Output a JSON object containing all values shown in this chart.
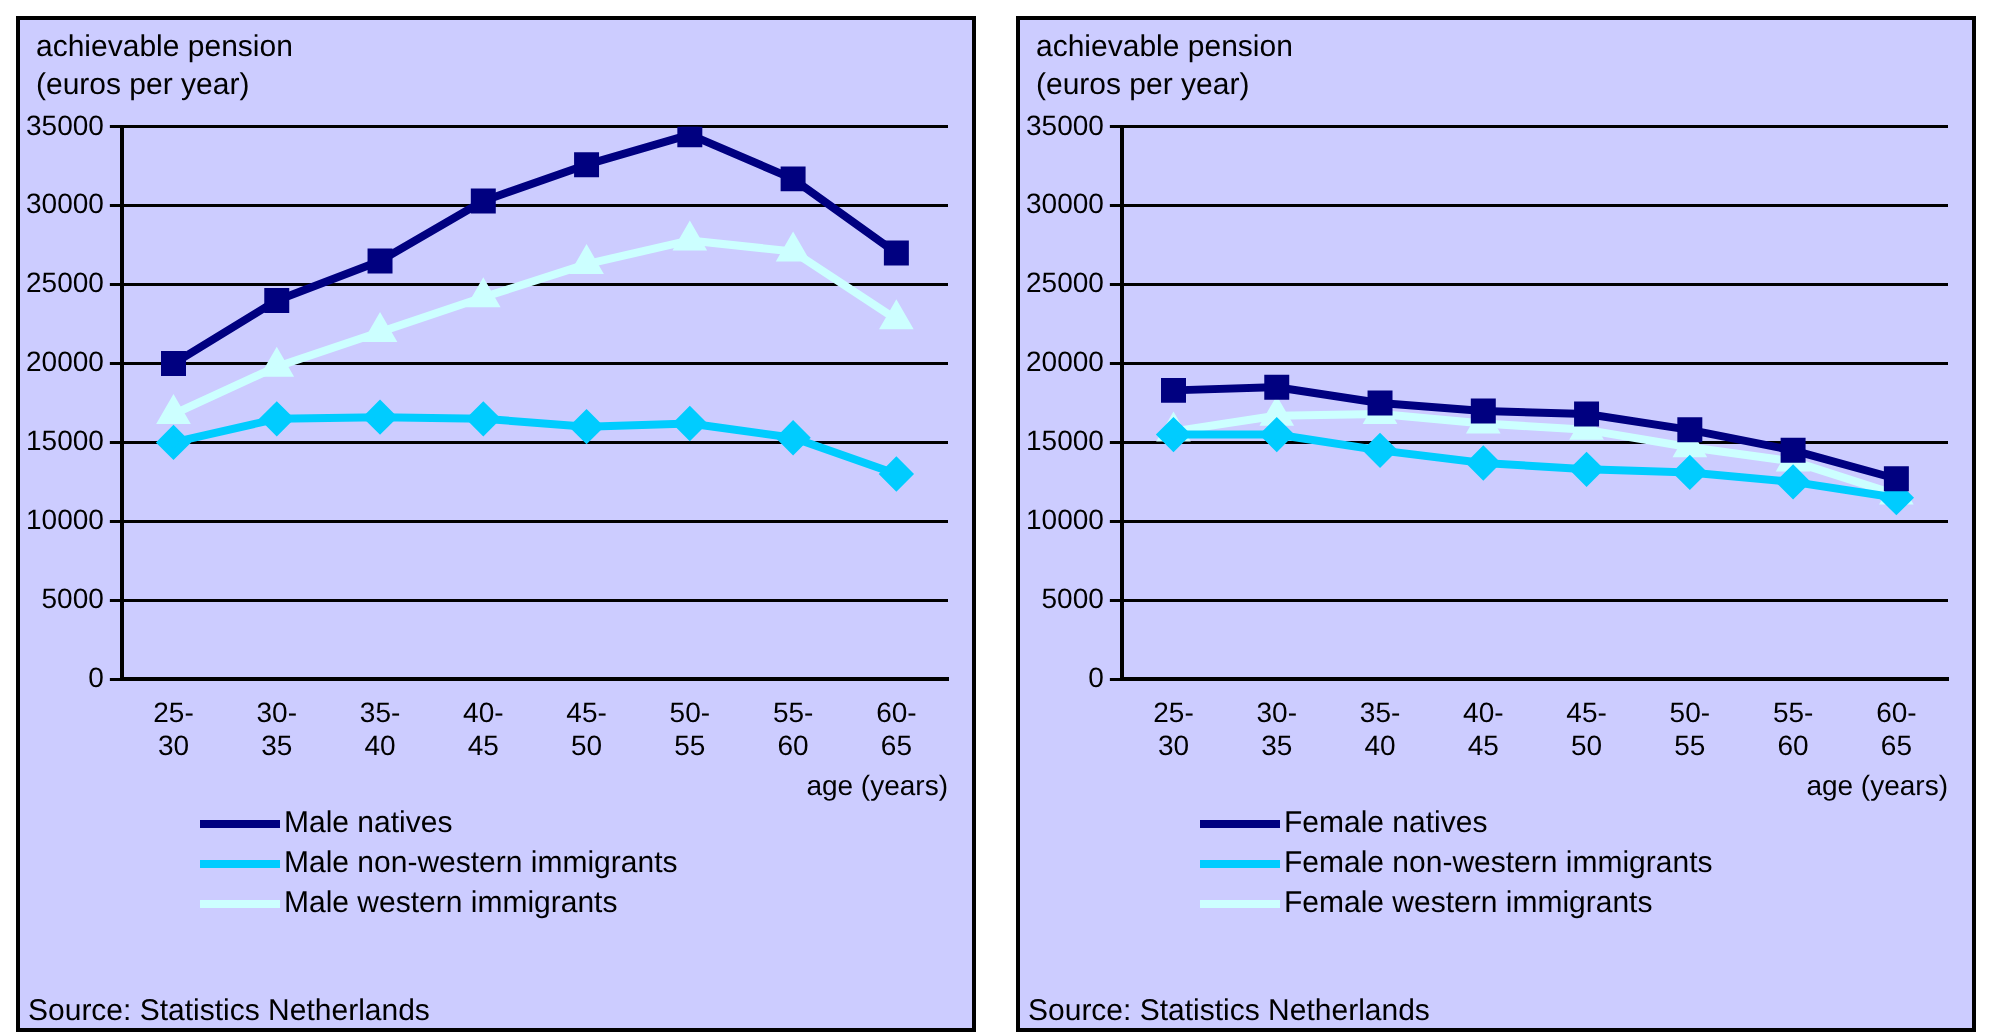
{
  "chart_data": [
    {
      "type": "line",
      "ylabel": "achievable pension\n(euros per year)",
      "xlabel": "age (years)",
      "categories": [
        "25-30",
        "30-35",
        "35-40",
        "40-45",
        "45-50",
        "50-55",
        "55-60",
        "60-65"
      ],
      "series": [
        {
          "name": "Male natives",
          "color": "#000080",
          "marker": "square",
          "values": [
            20000,
            24000,
            26500,
            30300,
            32600,
            34500,
            31700,
            27000
          ]
        },
        {
          "name": "Male non-western immigrants",
          "color": "#00ccff",
          "marker": "diamond",
          "values": [
            15000,
            16500,
            16600,
            16500,
            16000,
            16200,
            15300,
            13000
          ]
        },
        {
          "name": "Male western immigrants",
          "color": "#ccffff",
          "marker": "triangle",
          "values": [
            16800,
            19800,
            22000,
            24200,
            26300,
            27800,
            27100,
            22800
          ]
        }
      ],
      "ylim": [
        0,
        35000
      ],
      "yticks": [
        0,
        5000,
        10000,
        15000,
        20000,
        25000,
        30000,
        35000
      ],
      "grid": "y",
      "legend": "bottom left",
      "line_style": "solid",
      "annotations": [
        "Source: Statistics Netherlands"
      ]
    },
    {
      "type": "line",
      "ylabel": "achievable pension\n(euros per year)",
      "xlabel": "age (years)",
      "categories": [
        "25-30",
        "30-35",
        "35-40",
        "40-45",
        "45-50",
        "50-55",
        "55-60",
        "60-65"
      ],
      "series": [
        {
          "name": "Female natives",
          "color": "#000080",
          "marker": "square",
          "values": [
            18300,
            18500,
            17500,
            17000,
            16800,
            15800,
            14500,
            12700
          ]
        },
        {
          "name": "Female non-western immigrants",
          "color": "#00ccff",
          "marker": "diamond",
          "values": [
            15500,
            15500,
            14500,
            13700,
            13300,
            13100,
            12500,
            11500
          ]
        },
        {
          "name": "Female western immigrants",
          "color": "#ccffff",
          "marker": "triangle",
          "values": [
            15700,
            16700,
            16800,
            16200,
            15800,
            14700,
            13800,
            11700
          ]
        }
      ],
      "ylim": [
        0,
        35000
      ],
      "yticks": [
        0,
        5000,
        10000,
        15000,
        20000,
        25000,
        30000,
        35000
      ],
      "grid": "y",
      "legend": "bottom left",
      "line_style": "solid",
      "annotations": [
        "Source: Statistics Netherlands"
      ]
    }
  ]
}
